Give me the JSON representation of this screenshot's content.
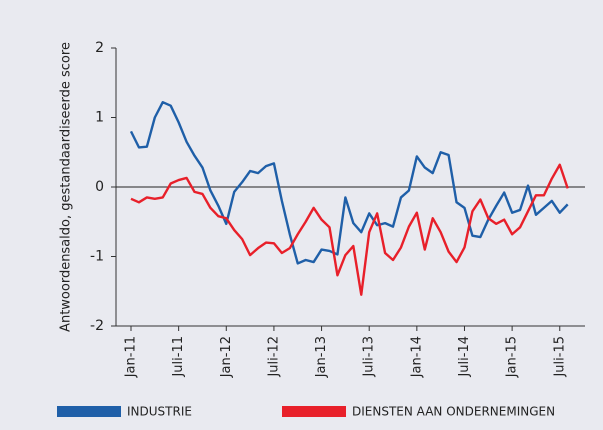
{
  "chart_data": {
    "type": "line",
    "y_label": "Antwoordensaldo, gestandaardiseerde score",
    "categories": [
      "Jan-11",
      null,
      null,
      null,
      null,
      null,
      "Juli-11",
      null,
      null,
      null,
      null,
      null,
      "Jan-12",
      null,
      null,
      null,
      null,
      null,
      "Juli-12",
      null,
      null,
      null,
      null,
      null,
      "Jan-13",
      null,
      null,
      null,
      null,
      null,
      "Juli-13",
      null,
      null,
      null,
      null,
      null,
      "Jan-14",
      null,
      null,
      null,
      null,
      null,
      "Juli-14",
      null,
      null,
      null,
      null,
      null,
      "Jan-15",
      null,
      null,
      null,
      null,
      null,
      "Juli-15",
      null
    ],
    "series": [
      {
        "name": "INDUSTRIE",
        "color": "#1f5fa8",
        "values": [
          0.8,
          0.57,
          0.58,
          1.0,
          1.22,
          1.17,
          0.93,
          0.65,
          0.45,
          0.28,
          -0.05,
          -0.27,
          -0.53,
          -0.07,
          0.07,
          0.23,
          0.2,
          0.3,
          0.34,
          -0.2,
          -0.68,
          -1.1,
          -1.05,
          -1.08,
          -0.9,
          -0.92,
          -0.97,
          -0.15,
          -0.52,
          -0.65,
          -0.38,
          -0.55,
          -0.52,
          -0.57,
          -0.15,
          -0.05,
          0.44,
          0.28,
          0.2,
          0.5,
          0.46,
          -0.22,
          -0.3,
          -0.7,
          -0.72,
          -0.47,
          -0.27,
          -0.08,
          -0.37,
          -0.33,
          0.02,
          -0.4,
          -0.3,
          -0.2,
          -0.37,
          -0.25
        ]
      },
      {
        "name": "DIENSTEN AAN ONDERNEMINGEN",
        "color": "#e8202a",
        "values": [
          -0.17,
          -0.22,
          -0.15,
          -0.17,
          -0.15,
          0.05,
          0.1,
          0.13,
          -0.07,
          -0.1,
          -0.3,
          -0.42,
          -0.45,
          -0.62,
          -0.75,
          -0.98,
          -0.88,
          -0.8,
          -0.81,
          -0.95,
          -0.88,
          -0.68,
          -0.5,
          -0.3,
          -0.47,
          -0.58,
          -1.27,
          -0.98,
          -0.85,
          -1.55,
          -0.65,
          -0.38,
          -0.95,
          -1.05,
          -0.87,
          -0.57,
          -0.37,
          -0.9,
          -0.45,
          -0.65,
          -0.93,
          -1.08,
          -0.87,
          -0.35,
          -0.18,
          -0.45,
          -0.53,
          -0.47,
          -0.68,
          -0.58,
          -0.35,
          -0.12,
          -0.12,
          0.12,
          0.32,
          -0.02
        ]
      }
    ],
    "ylim": [
      -2,
      2
    ],
    "yticks": [
      -2,
      -1,
      0,
      1,
      2
    ],
    "legend": "bottom"
  }
}
